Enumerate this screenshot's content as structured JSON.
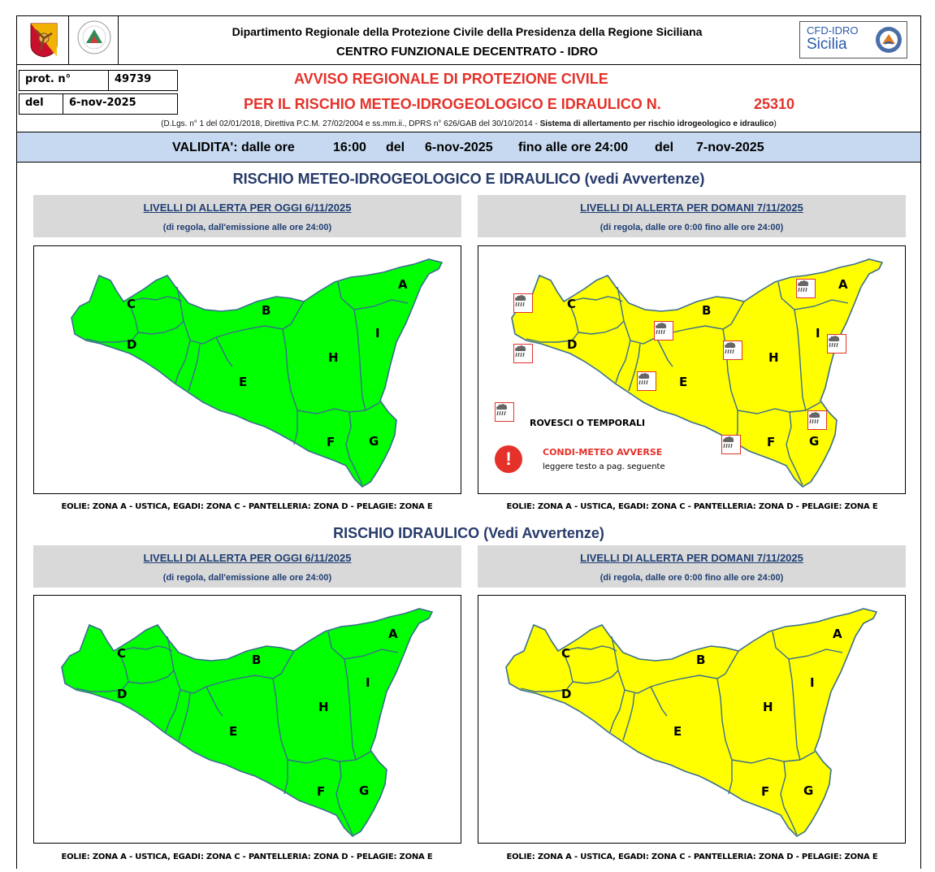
{
  "header": {
    "department": "Dipartimento Regionale della Protezione Civile della Presidenza della Regione Siciliana",
    "center": "CENTRO FUNZIONALE DECENTRATO - IDRO",
    "logo_right_top": "CFD-IDRO",
    "logo_right_bottom": "Sicilia"
  },
  "protocol": {
    "prot_label": "prot. n°",
    "prot_value": "49739",
    "date_label": "del",
    "date_value": "6-nov-2025"
  },
  "avviso": {
    "line1": "AVVISO REGIONALE DI PROTEZIONE CIVILE",
    "line2": "PER IL RISCHIO METEO-IDROGEOLOGICO E IDRAULICO N.",
    "number": "25310",
    "legal_prefix": "(D.Lgs. n° 1 del 02/01/2018, Direttiva P.C.M. 27/02/2004 e ss.mm.ii., DPRS n° 626/GAB del 30/10/2014 - ",
    "legal_bold": "Sistema di allertamento per rischio idrogeologico e idraulico",
    "legal_suffix": ")"
  },
  "validity": {
    "label": "VALIDITA': dalle ore",
    "from_time": "16:00",
    "from_del": "del",
    "from_date": "6-nov-2025",
    "to_label": "fino alle ore 24:00",
    "to_del": "del",
    "to_date": "7-nov-2025"
  },
  "colors": {
    "green": "#00ff00",
    "yellow": "#ffff00",
    "border": "#3a6e8f",
    "red": "#e4322b",
    "title": "#263a6a"
  },
  "sections": [
    {
      "title": "RISCHIO METEO-IDROGEOLOGICO E IDRAULICO (vedi Avvertenze)",
      "panels": [
        {
          "heading": "LIVELLI DI ALLERTA PER OGGI 6/11/2025",
          "sub": "(di regola, dall'emissione alle ore 24:00)",
          "fill": "#00ff00"
        },
        {
          "heading": "LIVELLI DI ALLERTA PER DOMANI 7/11/2025",
          "sub": "(di regola, dalle ore 0:00 fino alle ore 24:00)",
          "fill": "#ffff00"
        }
      ]
    },
    {
      "title": "RISCHIO IDRAULICO (Vedi Avvertenze)",
      "panels": [
        {
          "heading": "LIVELLI DI ALLERTA PER OGGI 6/11/2025",
          "sub": "(di regola, dall'emissione alle ore 24:00)",
          "fill": "#00ff00"
        },
        {
          "heading": "LIVELLI DI ALLERTA PER DOMANI 7/11/2025",
          "sub": "(di regola, dalle ore 0:00 fino alle ore 24:00)",
          "fill": "#ffff00"
        }
      ]
    }
  ],
  "zones": [
    "A",
    "B",
    "C",
    "D",
    "E",
    "F",
    "G",
    "H",
    "I"
  ],
  "legend": {
    "storms": "ROVESCI O TEMPORALI",
    "adverse_title": "CONDI-METEO AVVERSE",
    "adverse_sub": "leggere testo a pag. seguente",
    "adverse_icon": "!"
  },
  "islands_note": "EOLIE: ZONA A - USTICA, EGADI: ZONA C - PANTELLERIA: ZONA D - PELAGIE: ZONA E"
}
